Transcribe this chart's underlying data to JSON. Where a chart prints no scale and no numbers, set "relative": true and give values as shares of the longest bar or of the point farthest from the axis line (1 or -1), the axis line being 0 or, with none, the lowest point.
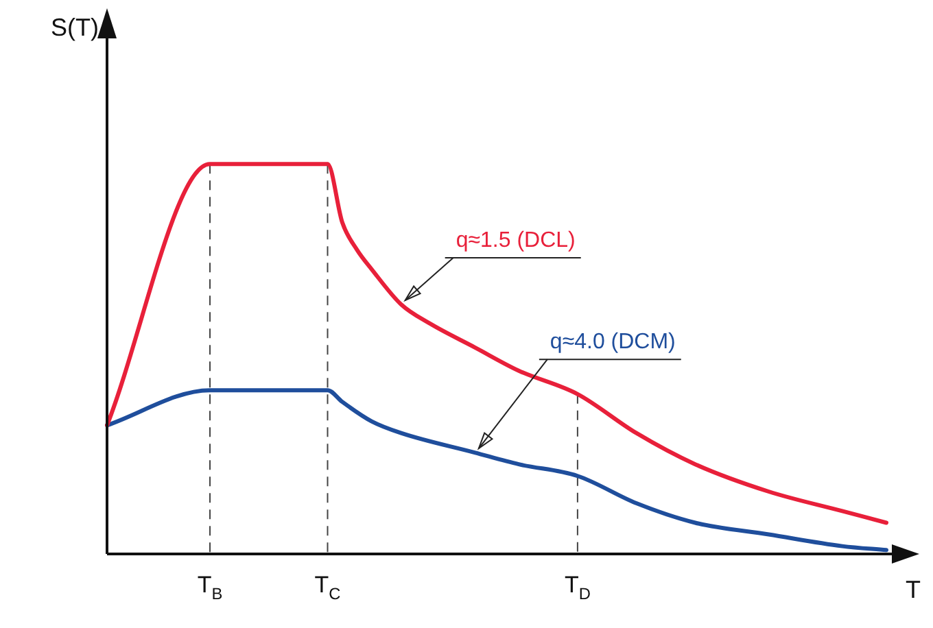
{
  "chart_data": {
    "type": "line",
    "relative": true,
    "xlabel": "T",
    "ylabel": "S(T)",
    "categories": [
      null,
      null,
      null,
      null,
      null,
      null,
      null,
      "T$_{B}$",
      null,
      null,
      null,
      null,
      null,
      null,
      null,
      "T$_{C}$",
      null,
      null,
      null,
      null,
      null,
      null,
      null,
      null,
      null,
      null,
      null,
      null,
      null,
      null,
      null,
      null,
      "T$_{D}$",
      null,
      null,
      null,
      null,
      null,
      null,
      null,
      null,
      null,
      null,
      null,
      null,
      null,
      null,
      null,
      null,
      null,
      null,
      null,
      null,
      null
    ],
    "series": [
      {
        "name": "q≈1.5 (DCL)",
        "color": "#e8203a",
        "values": [
          0.33,
          null,
          null,
          null,
          null,
          null,
          null,
          1,
          null,
          null,
          null,
          null,
          null,
          null,
          null,
          1,
          0.85,
          0.78,
          0.73,
          null,
          0.64,
          null,
          0.59,
          null,
          null,
          0.53,
          null,
          null,
          0.47,
          null,
          null,
          null,
          0.41,
          null,
          null,
          null,
          0.31,
          null,
          null,
          null,
          0.23,
          null,
          null,
          null,
          null,
          0.16,
          null,
          null,
          null,
          null,
          0.11,
          null,
          null,
          0.08
        ]
      },
      {
        "name": "q≈4.0 (DCM)",
        "color": "#1f4e9c",
        "values": [
          0.33,
          null,
          null,
          null,
          null,
          null,
          null,
          0.42,
          null,
          null,
          null,
          null,
          null,
          null,
          null,
          0.42,
          0.39,
          null,
          0.34,
          null,
          0.31,
          null,
          null,
          null,
          null,
          0.26,
          null,
          null,
          0.23,
          null,
          null,
          null,
          0.2,
          null,
          null,
          null,
          0.13,
          null,
          null,
          null,
          0.08,
          null,
          null,
          null,
          null,
          0.05,
          null,
          null,
          null,
          null,
          0.02,
          null,
          null,
          0.01
        ]
      }
    ],
    "ref_lines": [
      {
        "axis": "x",
        "value": "T$_{B}$",
        "line_style": "dashed"
      },
      {
        "axis": "x",
        "value": "T$_{C}$",
        "line_style": "dashed"
      },
      {
        "axis": "x",
        "value": "T$_{D}$",
        "line_style": "dashed"
      }
    ],
    "legend": false,
    "grid": false,
    "marker": "none",
    "line_style": "solid"
  }
}
